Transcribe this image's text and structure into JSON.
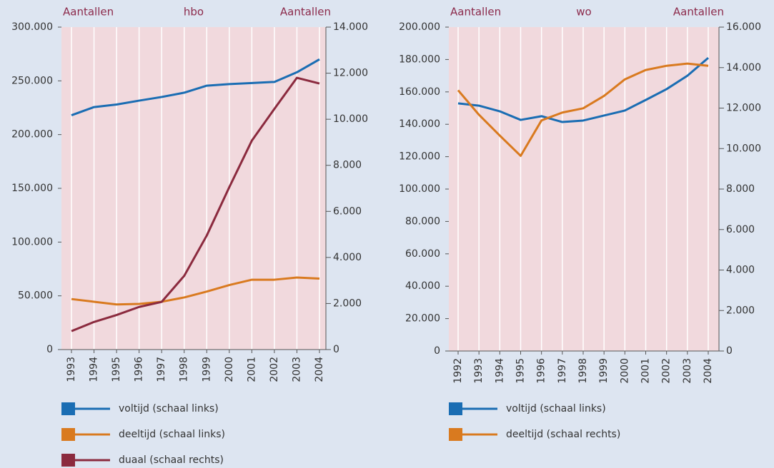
{
  "chart_data": [
    {
      "type": "line",
      "title": "hbo",
      "y_label": "Aantallen",
      "y2_label": "Aantallen",
      "categories": [
        "1993",
        "1994",
        "1995",
        "1996",
        "1997",
        "1998",
        "1999",
        "2000",
        "2001",
        "2002",
        "2003",
        "2004"
      ],
      "series": [
        {
          "name": "voltijd (schaal links)",
          "color": "#1a6db3",
          "axis": "y",
          "values": [
            218000,
            225600,
            228000,
            231600,
            235000,
            239000,
            245500,
            247000,
            248000,
            249000,
            258000,
            270000
          ]
        },
        {
          "name": "deeltijd (schaal links)",
          "color": "#d97a1f",
          "axis": "y",
          "values": [
            47000,
            44500,
            42000,
            42500,
            44500,
            48500,
            54000,
            60000,
            65000,
            65000,
            67000,
            66000
          ]
        },
        {
          "name": "duaal (schaal rechts)",
          "color": "#8b2a3e",
          "axis": "y2",
          "values": [
            800,
            1200,
            1500,
            1850,
            2070,
            3200,
            4950,
            7050,
            9070,
            10450,
            11800,
            11550
          ]
        }
      ],
      "ylim": [
        0,
        300000
      ],
      "yticks": [
        0,
        {
          "value": 50000,
          "label": "50.000"
        },
        {
          "value": 100000,
          "label": "100.000"
        },
        {
          "value": 150000,
          "label": "150.000"
        },
        {
          "value": 200000,
          "label": "200.000"
        },
        {
          "value": 250000,
          "label": "250.000"
        },
        {
          "value": 300000,
          "label": "300.000"
        }
      ],
      "y2lim": [
        0,
        14000
      ],
      "y2ticks": [
        0,
        {
          "value": 2000,
          "label": "2.000"
        },
        {
          "value": 4000,
          "label": "4.000"
        },
        {
          "value": 6000,
          "label": "6.000"
        },
        {
          "value": 8000,
          "label": "8.000"
        },
        {
          "value": 10000,
          "label": "10.000"
        },
        {
          "value": 12000,
          "label": "12.000"
        },
        {
          "value": 14000,
          "label": "14.000"
        }
      ],
      "grid": true
    },
    {
      "type": "line",
      "title": "wo",
      "y_label": "Aantallen",
      "y2_label": "Aantallen",
      "categories": [
        "1992",
        "1993",
        "1994",
        "1995",
        "1996",
        "1997",
        "1998",
        "1999",
        "2000",
        "2001",
        "2002",
        "2003",
        "2004"
      ],
      "series": [
        {
          "name": "voltijd (schaal links)",
          "color": "#1a6db3",
          "axis": "y",
          "values": [
            152900,
            151500,
            148000,
            142700,
            145000,
            141400,
            142300,
            145400,
            148500,
            155000,
            161700,
            170000,
            181000
          ]
        },
        {
          "name": "deeltijd (schaal rechts)",
          "color": "#d97a1f",
          "axis": "y2",
          "values": [
            12880,
            11670,
            10640,
            9640,
            11390,
            11780,
            11990,
            12600,
            13420,
            13880,
            14090,
            14200,
            14090
          ]
        }
      ],
      "ylim": [
        0,
        200000
      ],
      "yticks": [
        0,
        {
          "value": 20000,
          "label": "20.000"
        },
        {
          "value": 40000,
          "label": "40.000"
        },
        {
          "value": 60000,
          "label": "60.000"
        },
        {
          "value": 80000,
          "label": "80.000"
        },
        {
          "value": 100000,
          "label": "100.000"
        },
        {
          "value": 120000,
          "label": "120.000"
        },
        {
          "value": 140000,
          "label": "140.000"
        },
        {
          "value": 160000,
          "label": "160.000"
        },
        {
          "value": 180000,
          "label": "180.000"
        },
        {
          "value": 200000,
          "label": "200.000"
        }
      ],
      "y2lim": [
        0,
        16000
      ],
      "y2ticks": [
        0,
        {
          "value": 2000,
          "label": "2.000"
        },
        {
          "value": 4000,
          "label": "4.000"
        },
        {
          "value": 6000,
          "label": "6.000"
        },
        {
          "value": 8000,
          "label": "8.000"
        },
        {
          "value": 10000,
          "label": "10.000"
        },
        {
          "value": 12000,
          "label": "12.000"
        },
        {
          "value": 14000,
          "label": "14.000"
        },
        {
          "value": 16000,
          "label": "16.000"
        }
      ],
      "grid": true
    }
  ]
}
